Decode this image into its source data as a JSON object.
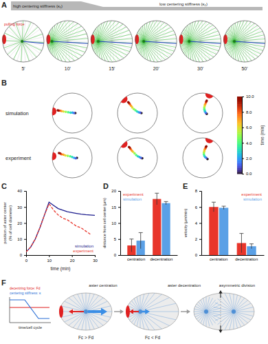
{
  "panel_a": {
    "panel_label": "A",
    "header": [
      "high centering stiffness (κ₁)",
      "low centering stiffness (κ₂)"
    ],
    "annotation": "pulling force",
    "snapshots": [
      {
        "time": "5'",
        "aster_position": 3
      },
      {
        "time": "10'",
        "aster_position": 38
      },
      {
        "time": "15'",
        "aster_position": 33
      },
      {
        "time": "20'",
        "aster_position": 30
      },
      {
        "time": "30'",
        "aster_position": 27
      },
      {
        "time": "50'",
        "aster_position": 25
      }
    ]
  },
  "panel_b": {
    "panel_label": "B",
    "rows": [
      "simulation",
      "experiment"
    ],
    "pull_angles": [
      175,
      135,
      70
    ],
    "colorbar": {
      "title": "time (min)",
      "range": [
        0,
        10
      ],
      "ticks": [
        {
          "value": 0,
          "label": "0.0"
        },
        {
          "value": 2,
          "label": "2.0"
        },
        {
          "value": 4,
          "label": "4.0"
        },
        {
          "value": 6,
          "label": "6.0"
        },
        {
          "value": 8,
          "label": "8.0"
        },
        {
          "value": 10,
          "label": "10.0"
        }
      ]
    },
    "trajectories": [
      {
        "t": [
          0,
          1,
          2,
          3,
          4,
          5,
          6,
          7,
          8,
          9,
          10
        ],
        "x": [
          8,
          5,
          1,
          -4,
          -10,
          -16,
          -22,
          -27,
          -31,
          -34,
          -36
        ],
        "y": [
          0,
          0,
          1,
          1,
          2,
          3,
          4,
          5,
          6,
          6,
          7
        ]
      },
      {
        "t": [
          0,
          1,
          2,
          3,
          4,
          5,
          6,
          7,
          8,
          9,
          10
        ],
        "x": [
          10,
          7,
          3,
          -1,
          -5,
          -9,
          -13,
          -16,
          -19,
          -21,
          -23
        ],
        "y": [
          0,
          1,
          2,
          4,
          7,
          10,
          14,
          18,
          22,
          25,
          27
        ]
      },
      {
        "t": [
          0,
          1,
          2,
          3,
          4,
          5,
          6,
          7,
          8,
          9,
          10
        ],
        "x": [
          10,
          8,
          6,
          5,
          4,
          4,
          5,
          6,
          8,
          9,
          10
        ],
        "y": [
          -2,
          0,
          3,
          6,
          10,
          14,
          18,
          22,
          26,
          29,
          31
        ]
      },
      {
        "t": [
          0,
          1,
          2,
          3,
          4,
          5,
          6,
          7,
          8,
          9,
          10
        ],
        "x": [
          12,
          9,
          5,
          0,
          -5,
          -11,
          -17,
          -22,
          -27,
          -30,
          -33
        ],
        "y": [
          0,
          -1,
          0,
          2,
          4,
          5,
          6,
          8,
          9,
          11,
          12
        ]
      },
      {
        "t": [
          0,
          1,
          2,
          3,
          4,
          5,
          6,
          7,
          8,
          9,
          10
        ],
        "x": [
          12,
          9,
          5,
          1,
          -3,
          -7,
          -11,
          -14,
          -17,
          -19,
          -21
        ],
        "y": [
          -1,
          0,
          2,
          4,
          7,
          11,
          15,
          18,
          22,
          25,
          27
        ]
      },
      {
        "t": [
          0,
          1,
          2,
          3,
          4,
          5,
          6,
          7,
          8,
          9,
          10
        ],
        "x": [
          12,
          9,
          6,
          4,
          3,
          3,
          4,
          5,
          7,
          8,
          9
        ],
        "y": [
          -3,
          0,
          2,
          5,
          9,
          13,
          17,
          21,
          24,
          27,
          29
        ]
      }
    ]
  },
  "chart_data": [
    {
      "panel_label": "C",
      "type": "line",
      "x_label": "time (min)",
      "y_label": [
        "position of aster center",
        "(% of cell diameter)"
      ],
      "xlim": [
        0,
        30
      ],
      "ylim": [
        0,
        40
      ],
      "xticks": [
        0,
        10,
        20,
        30
      ],
      "yticks": [
        0,
        10,
        20,
        30,
        40
      ],
      "x": [
        0,
        2,
        4,
        6,
        8,
        10,
        12,
        14,
        16,
        18,
        20,
        22,
        24,
        26,
        28,
        30
      ],
      "series": [
        {
          "name": "simulation",
          "color": "#1a1a8c",
          "line_style": "solid",
          "values": [
            2,
            5,
            10,
            17,
            25,
            33,
            31,
            29,
            28,
            27,
            26.5,
            26,
            25.5,
            25.2,
            25,
            24.8
          ]
        },
        {
          "name": "experiment",
          "color": "#e8352b",
          "line_style": "dashed",
          "values": [
            2,
            5,
            10,
            17,
            25,
            32,
            28,
            25,
            23,
            22,
            20,
            18,
            17,
            15,
            13,
            null
          ]
        }
      ],
      "legend": "lower right"
    },
    {
      "panel_label": "D",
      "type": "bar",
      "categories": [
        "centration",
        "decentration"
      ],
      "y_label": "distance from cell center (µm)",
      "ylim": [
        0,
        20
      ],
      "yticks": [
        0,
        5,
        10,
        15,
        20
      ],
      "series": [
        {
          "name": "experiment",
          "color": "#e8352b",
          "values": [
            3,
            17.5
          ],
          "errors": [
            2,
            1.8
          ]
        },
        {
          "name": "simulation",
          "color": "#5aa0e6",
          "values": [
            4.5,
            16.2
          ],
          "errors": [
            2.5,
            0.5
          ]
        }
      ],
      "legend": "upper left"
    },
    {
      "panel_label": "E",
      "type": "bar",
      "categories": [
        "centration",
        "decentration"
      ],
      "y_label": "velocity (µm/min)",
      "ylim": [
        0,
        8
      ],
      "yticks": [
        0,
        2,
        4,
        6,
        8
      ],
      "series": [
        {
          "name": "experiment",
          "color": "#e8352b",
          "values": [
            6,
            1.5
          ],
          "errors": [
            0.6,
            1.2
          ]
        },
        {
          "name": "simulation",
          "color": "#5aa0e6",
          "values": [
            5.9,
            1.1
          ],
          "errors": [
            0.2,
            0.3
          ]
        }
      ],
      "legend": "upper right"
    }
  ],
  "panel_f": {
    "panel_label": "F",
    "graph": {
      "series": [
        "decentring force: Fd",
        "centering stiffness: κ"
      ],
      "x_label": "time/cell cycle"
    },
    "stages": [
      "aster centration",
      "aster decentration",
      "asymmetric division"
    ],
    "conditions": [
      "Fc > Fd",
      "Fc < Fd"
    ]
  }
}
